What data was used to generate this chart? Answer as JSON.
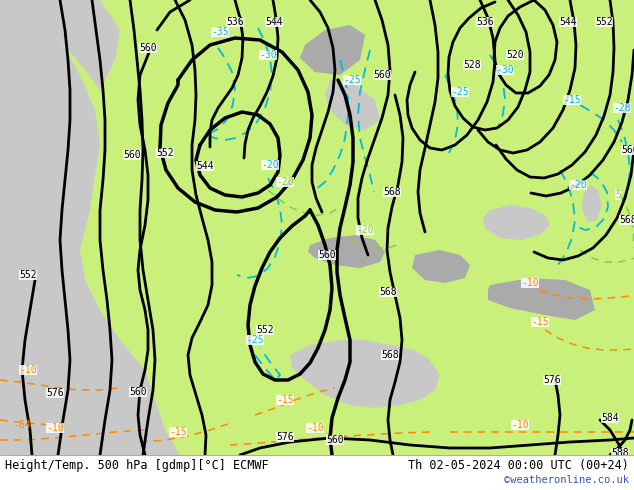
{
  "title_left": "Height/Temp. 500 hPa [gdmp][°C] ECMWF",
  "title_right": "Th 02-05-2024 00:00 UTC (00+24)",
  "watermark": "©weatheronline.co.uk",
  "bg_ocean": "#c8c8c8",
  "bg_land": "#c8f07a",
  "bg_mountain": "#aaaaaa",
  "bg_sea_inland": "#c8c8c8",
  "footer_bg": "#ffffff",
  "color_black": "#000000",
  "color_cyan": "#00bbdd",
  "color_green_line": "#88cc44",
  "color_orange": "#ff8800",
  "color_title": "#000000",
  "color_watermark": "#3355bb",
  "figsize": [
    6.34,
    4.9
  ],
  "dpi": 100
}
